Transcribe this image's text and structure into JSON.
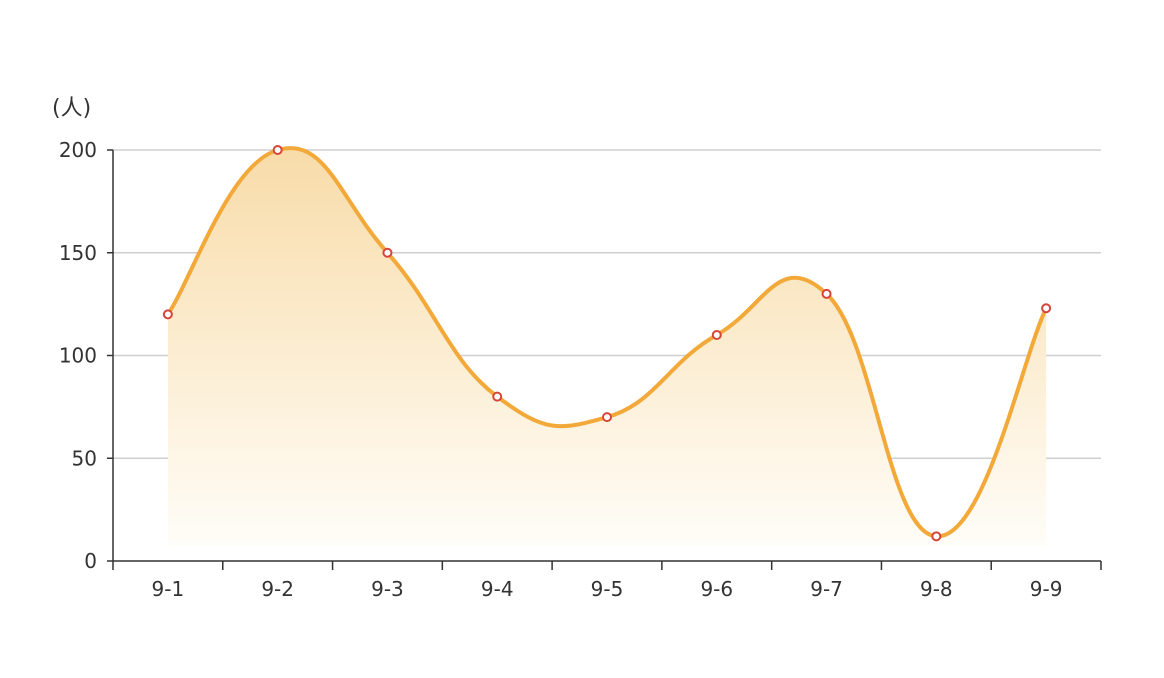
{
  "chart_data": {
    "type": "area",
    "title": "",
    "xlabel": "",
    "ylabel": "(人)",
    "categories": [
      "9-1",
      "9-2",
      "9-3",
      "9-4",
      "9-5",
      "9-6",
      "9-7",
      "9-8",
      "9-9"
    ],
    "series": [
      {
        "values": [
          120,
          200,
          150,
          80,
          70,
          110,
          130,
          12,
          123
        ]
      }
    ],
    "ylim": [
      0,
      200
    ],
    "yticks": [
      0,
      50,
      100,
      150,
      200
    ],
    "grid": true,
    "legend": "none",
    "colors": {
      "line": "#f3a93a",
      "area_top": "#f8dca9",
      "area_bottom": "#fffdf8",
      "point_stroke": "#d64537",
      "grid": "#cfcfcf",
      "axis": "#333333"
    }
  }
}
